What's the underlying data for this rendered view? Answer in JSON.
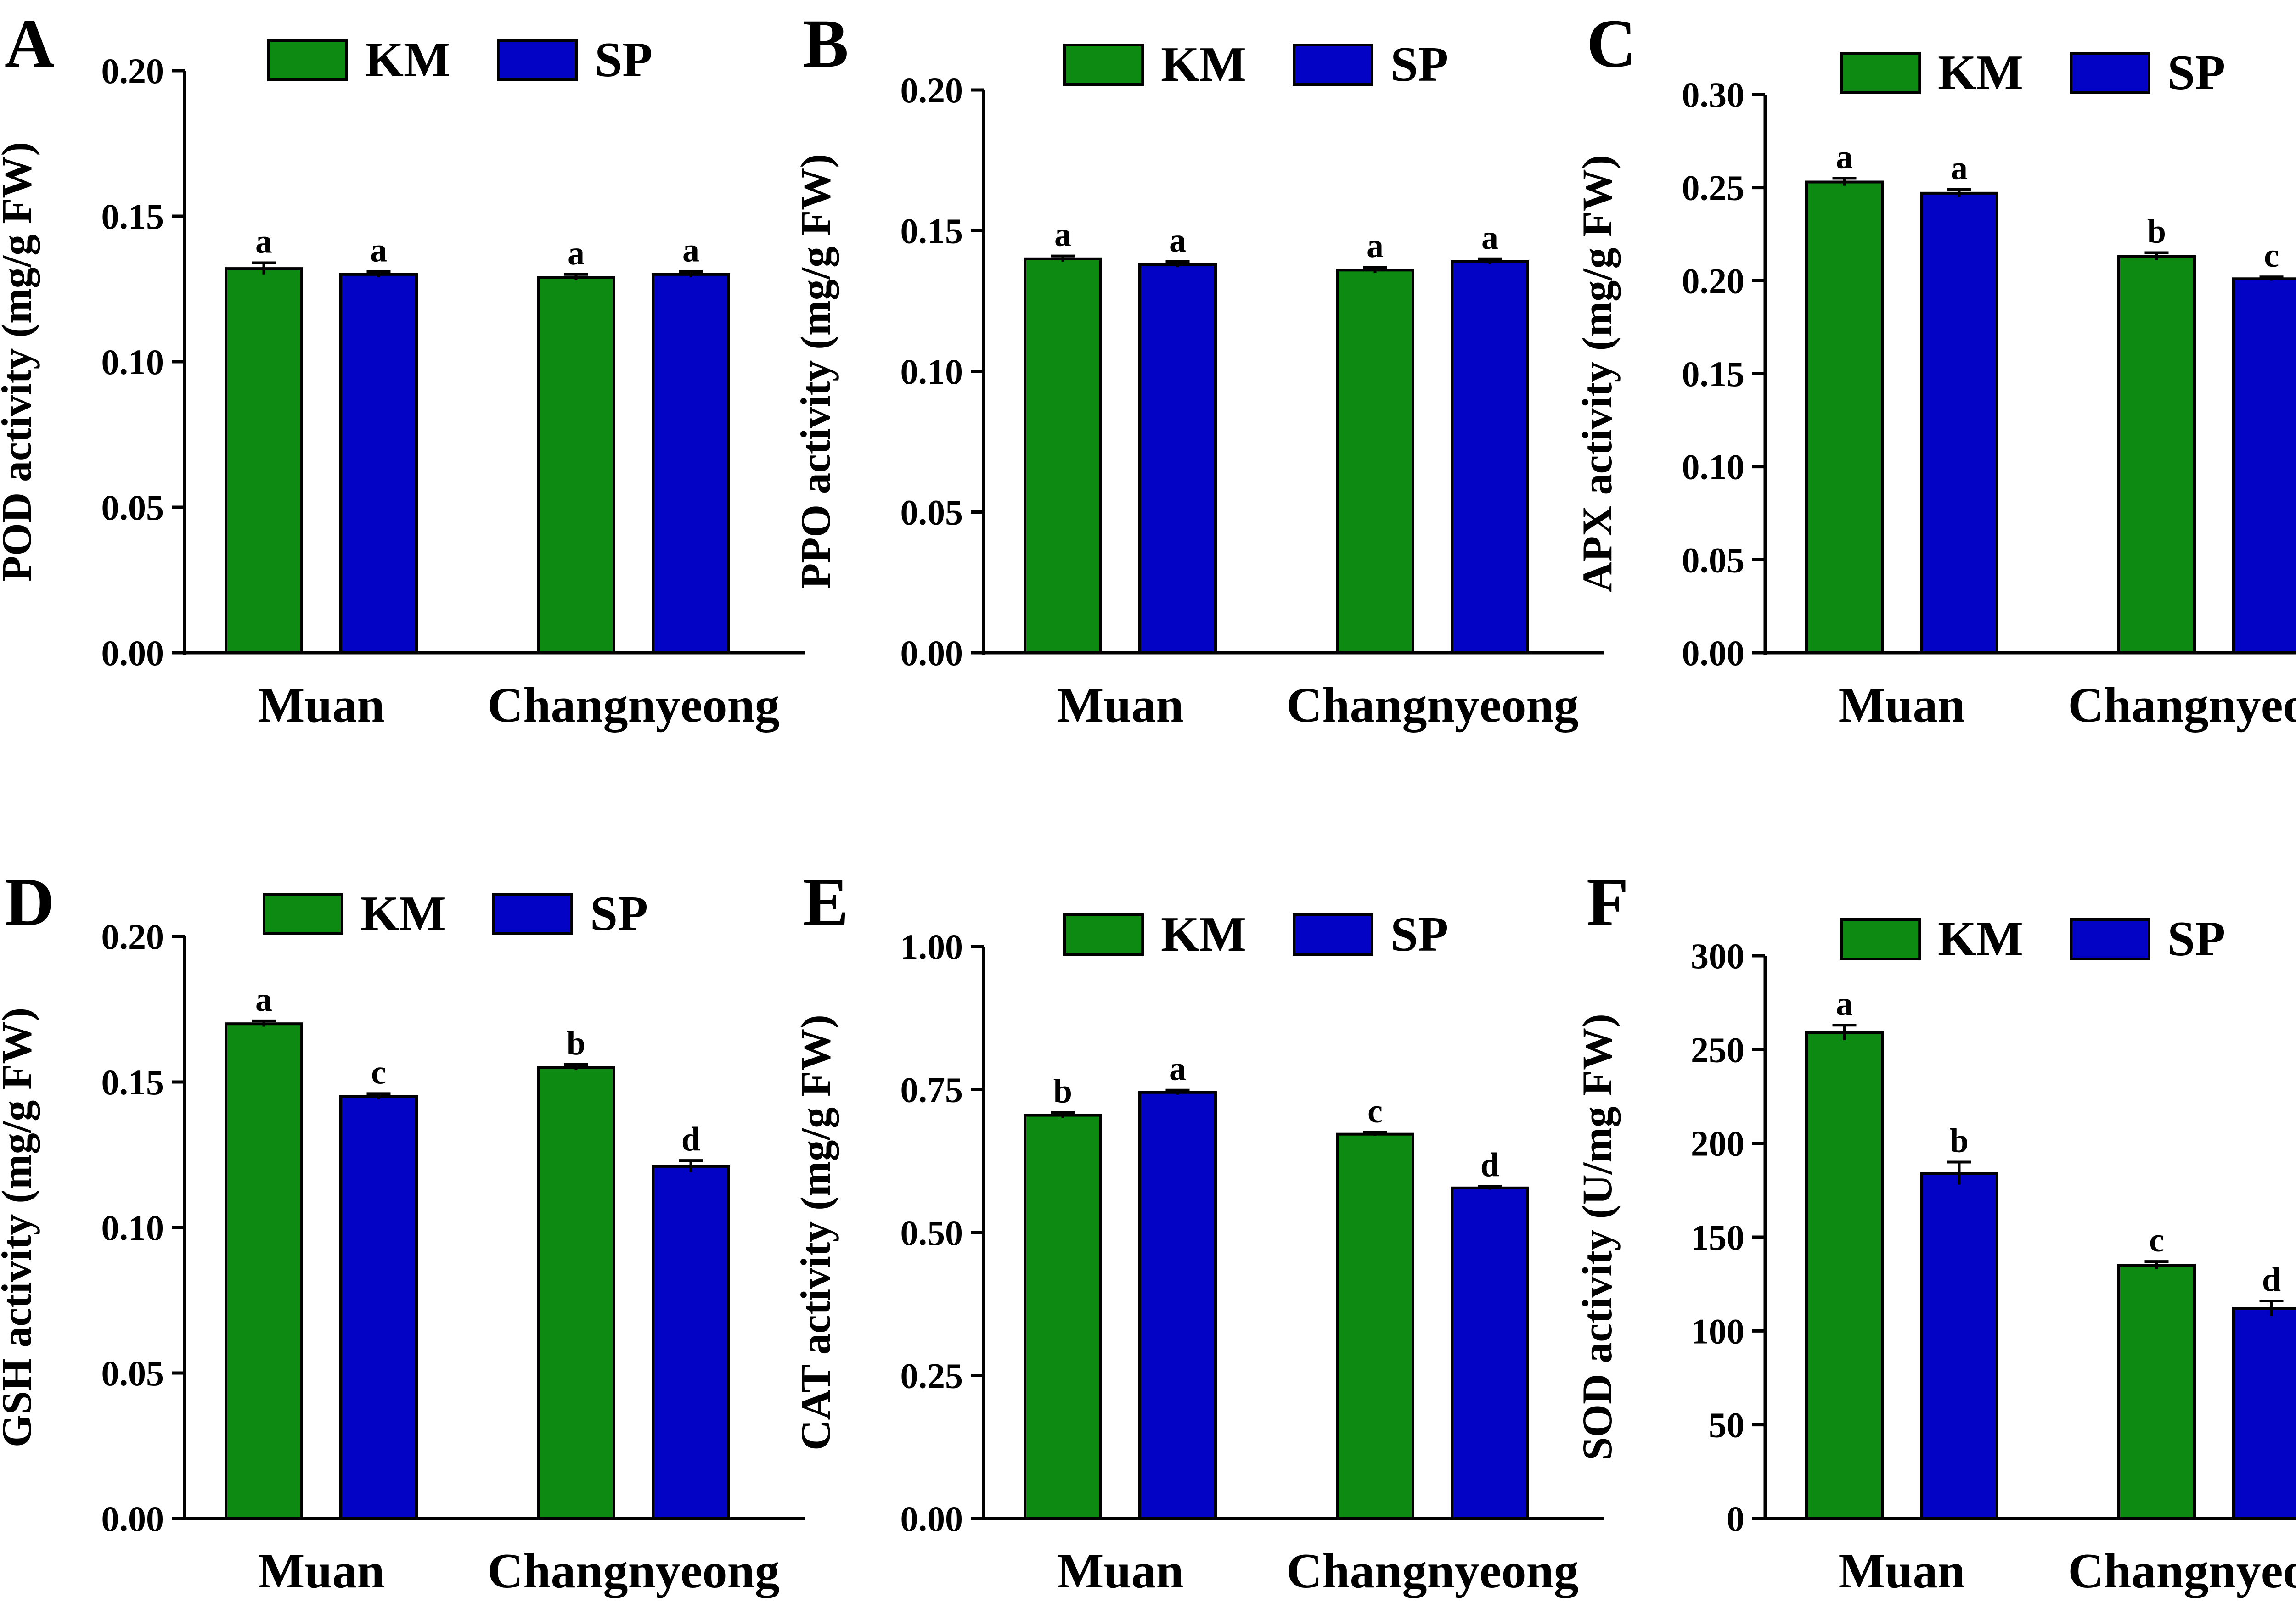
{
  "figure": {
    "description_none": ""
  },
  "legend": [
    "KM",
    "SP"
  ],
  "colors": {
    "KM": "#0d8a12",
    "SP": "#0303c5",
    "axis": "#000000"
  },
  "chart_data": [
    {
      "panel": "A",
      "type": "bar",
      "ylabel": "POD activity (mg/g FW)",
      "categories": [
        "Muan",
        "Changnyeong"
      ],
      "ylim": [
        0,
        0.2
      ],
      "yticks": [
        "0.00",
        "0.05",
        "0.10",
        "0.15",
        "0.20"
      ],
      "series": [
        {
          "name": "KM",
          "values": [
            0.132,
            0.129
          ],
          "errors": [
            0.002,
            0.001
          ],
          "letters": [
            "a",
            "a"
          ]
        },
        {
          "name": "SP",
          "values": [
            0.13,
            0.13
          ],
          "errors": [
            0.001,
            0.001
          ],
          "letters": [
            "a",
            "a"
          ]
        }
      ]
    },
    {
      "panel": "B",
      "type": "bar",
      "ylabel": "PPO activity (mg/g FW)",
      "categories": [
        "Muan",
        "Changnyeong"
      ],
      "ylim": [
        0,
        0.2
      ],
      "yticks": [
        "0.00",
        "0.05",
        "0.10",
        "0.15",
        "0.20"
      ],
      "series": [
        {
          "name": "KM",
          "values": [
            0.14,
            0.136
          ],
          "errors": [
            0.001,
            0.001
          ],
          "letters": [
            "a",
            "a"
          ]
        },
        {
          "name": "SP",
          "values": [
            0.138,
            0.139
          ],
          "errors": [
            0.001,
            0.001
          ],
          "letters": [
            "a",
            "a"
          ]
        }
      ]
    },
    {
      "panel": "C",
      "type": "bar",
      "ylabel": "APX activity (mg/g FW)",
      "categories": [
        "Muan",
        "Changnyeong"
      ],
      "ylim": [
        0,
        0.3
      ],
      "yticks": [
        "0.00",
        "0.05",
        "0.10",
        "0.15",
        "0.20",
        "0.25",
        "0.30"
      ],
      "series": [
        {
          "name": "KM",
          "values": [
            0.253,
            0.213
          ],
          "errors": [
            0.002,
            0.002
          ],
          "letters": [
            "a",
            "b"
          ]
        },
        {
          "name": "SP",
          "values": [
            0.247,
            0.201
          ],
          "errors": [
            0.002,
            0.001
          ],
          "letters": [
            "a",
            "c"
          ]
        }
      ]
    },
    {
      "panel": "D",
      "type": "bar",
      "ylabel": "GSH activity (mg/g FW)",
      "categories": [
        "Muan",
        "Changnyeong"
      ],
      "ylim": [
        0,
        0.2
      ],
      "yticks": [
        "0.00",
        "0.05",
        "0.10",
        "0.15",
        "0.20"
      ],
      "series": [
        {
          "name": "KM",
          "values": [
            0.17,
            0.155
          ],
          "errors": [
            0.001,
            0.001
          ],
          "letters": [
            "a",
            "b"
          ]
        },
        {
          "name": "SP",
          "values": [
            0.145,
            0.121
          ],
          "errors": [
            0.001,
            0.002
          ],
          "letters": [
            "c",
            "d"
          ]
        }
      ]
    },
    {
      "panel": "E",
      "type": "bar",
      "ylabel": "CAT activity (mg/g FW)",
      "categories": [
        "Muan",
        "Changnyeong"
      ],
      "ylim": [
        0,
        1.0
      ],
      "yticks": [
        "0.00",
        "0.25",
        "0.50",
        "0.75",
        "1.00"
      ],
      "series": [
        {
          "name": "KM",
          "values": [
            0.705,
            0.672
          ],
          "errors": [
            0.005,
            0.003
          ],
          "letters": [
            "b",
            "c"
          ]
        },
        {
          "name": "SP",
          "values": [
            0.745,
            0.578
          ],
          "errors": [
            0.004,
            0.003
          ],
          "letters": [
            "a",
            "d"
          ]
        }
      ]
    },
    {
      "panel": "F",
      "type": "bar",
      "ylabel": "SOD activity (U/mg FW)",
      "categories": [
        "Muan",
        "Changnyeong"
      ],
      "ylim": [
        0,
        300
      ],
      "yticks": [
        "0",
        "50",
        "100",
        "150",
        "200",
        "250",
        "300"
      ],
      "series": [
        {
          "name": "KM",
          "values": [
            259,
            135
          ],
          "errors": [
            4,
            2
          ],
          "letters": [
            "a",
            "c"
          ]
        },
        {
          "name": "SP",
          "values": [
            184,
            112
          ],
          "errors": [
            6,
            4
          ],
          "letters": [
            "b",
            "d"
          ]
        }
      ]
    }
  ]
}
